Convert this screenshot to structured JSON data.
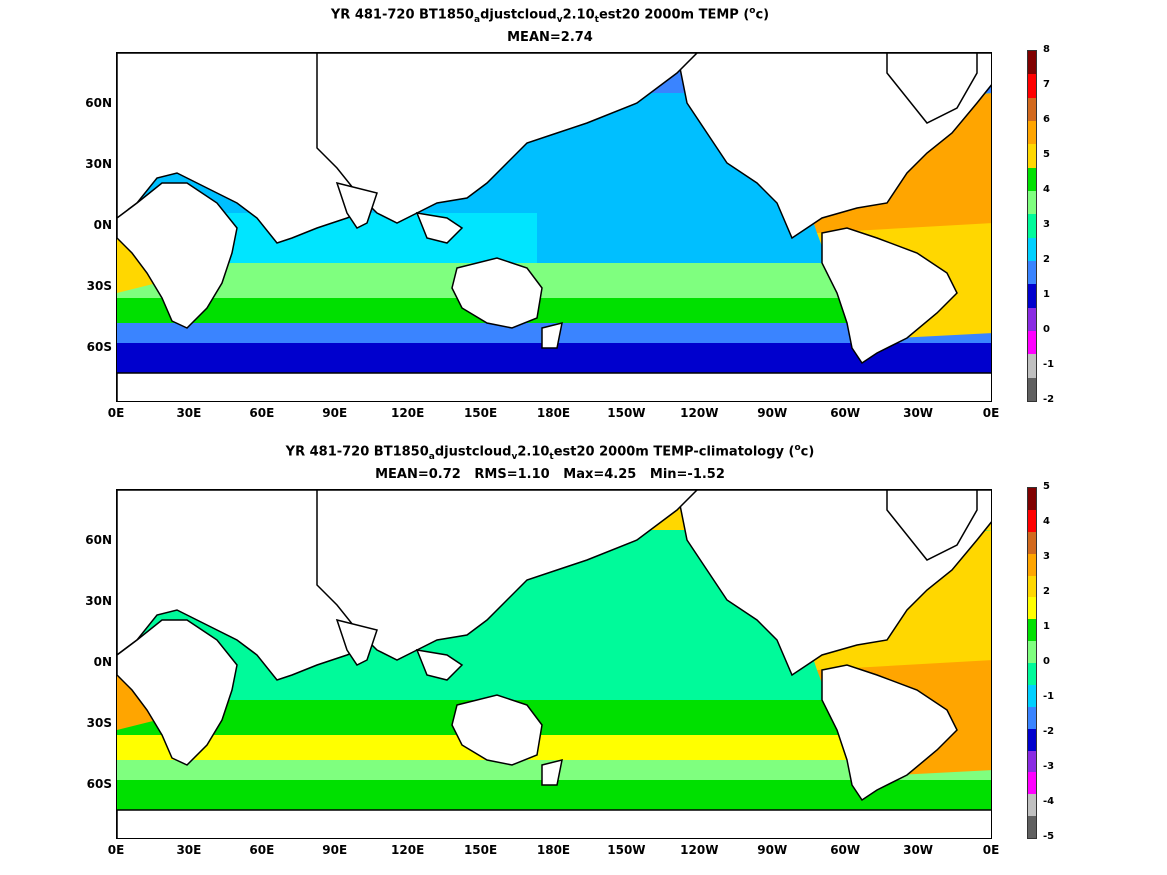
{
  "panels": [
    {
      "title_main": "YR 481-720 BT1850",
      "title_sub1": "a",
      "title_mid1": "djustcloud",
      "title_sub2": "v",
      "title_mid2": "2.10",
      "title_sub3": "t",
      "title_tail": "est20 2000m TEMP (",
      "title_sup": "o",
      "title_end": "c)",
      "stats": "MEAN=2.74",
      "colorbar_labels": [
        "8",
        "7",
        "6",
        "5",
        "4",
        "3",
        "2",
        "1",
        "0",
        "-1",
        "-2"
      ],
      "colorbar_colors": [
        "#800000",
        "#ff0000",
        "#d2691e",
        "#ffa500",
        "#ffd700",
        "#00e000",
        "#7fff7f",
        "#00fa9a",
        "#00d0ff",
        "#3a84ff",
        "#0000cd",
        "#8a2be2",
        "#ff00ff",
        "#c0c0c0",
        "#606060"
      ],
      "colors": {
        "north_atlantic": "#ffa500",
        "south_atlantic": "#ffd700",
        "pacific": "#00bfff",
        "indian": "#00e5ff",
        "southern_belt1": "#00e000",
        "southern_belt2": "#7fff7f",
        "antarctic": "#3a84ff",
        "deep_south": "#0000cd",
        "arctic": "#3a84ff"
      }
    },
    {
      "title_main": "YR 481-720 BT1850",
      "title_sub1": "a",
      "title_mid1": "djustcloud",
      "title_sub2": "v",
      "title_mid2": "2.10",
      "title_sub3": "t",
      "title_tail": "est20 2000m TEMP-climatology (",
      "title_sup": "o",
      "title_end": "c)",
      "stats": "MEAN=0.72   RMS=1.10   Max=4.25   Min=-1.52",
      "colorbar_labels": [
        "5",
        "4",
        "3",
        "2",
        "1",
        "0",
        "-1",
        "-2",
        "-3",
        "-4",
        "-5"
      ],
      "colorbar_colors": [
        "#800000",
        "#ff0000",
        "#d2691e",
        "#ffa500",
        "#ffd700",
        "#ffff00",
        "#00e000",
        "#7fff7f",
        "#00fa9a",
        "#00d0ff",
        "#3a84ff",
        "#0000cd",
        "#8a2be2",
        "#ff00ff",
        "#c0c0c0",
        "#606060"
      ],
      "colors": {
        "north_atlantic": "#ffd700",
        "south_atlantic": "#ffa500",
        "pacific": "#00fa9a",
        "indian": "#00fa9a",
        "southern_belt1": "#ffff00",
        "southern_belt2": "#00e000",
        "antarctic": "#7fff7f",
        "deep_south": "#00e000",
        "arctic": "#ffd700"
      }
    }
  ],
  "y_ticks": [
    "60N",
    "30N",
    "0N",
    "30S",
    "60S"
  ],
  "x_ticks": [
    "0E",
    "30E",
    "60E",
    "90E",
    "120E",
    "150E",
    "180E",
    "150W",
    "120W",
    "90W",
    "60W",
    "30W",
    "0E"
  ]
}
